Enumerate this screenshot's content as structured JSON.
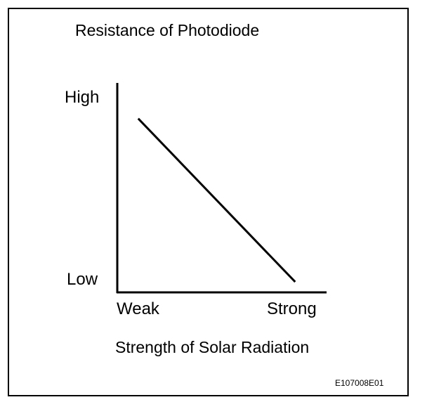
{
  "chart_data": {
    "type": "line",
    "title": "Resistance of Photodiode",
    "xlabel": "Strength of Solar Radiation",
    "ylabel": "",
    "x_tick_labels": [
      "Weak",
      "Strong"
    ],
    "y_tick_labels": [
      "Low",
      "High"
    ],
    "xlim": [
      0,
      1
    ],
    "ylim": [
      0,
      1
    ],
    "grid": false,
    "legend": "none",
    "series": [
      {
        "x": [
          0.1,
          0.85
        ],
        "y": [
          0.83,
          0.05
        ]
      }
    ]
  },
  "figure_id": "E107008E01"
}
